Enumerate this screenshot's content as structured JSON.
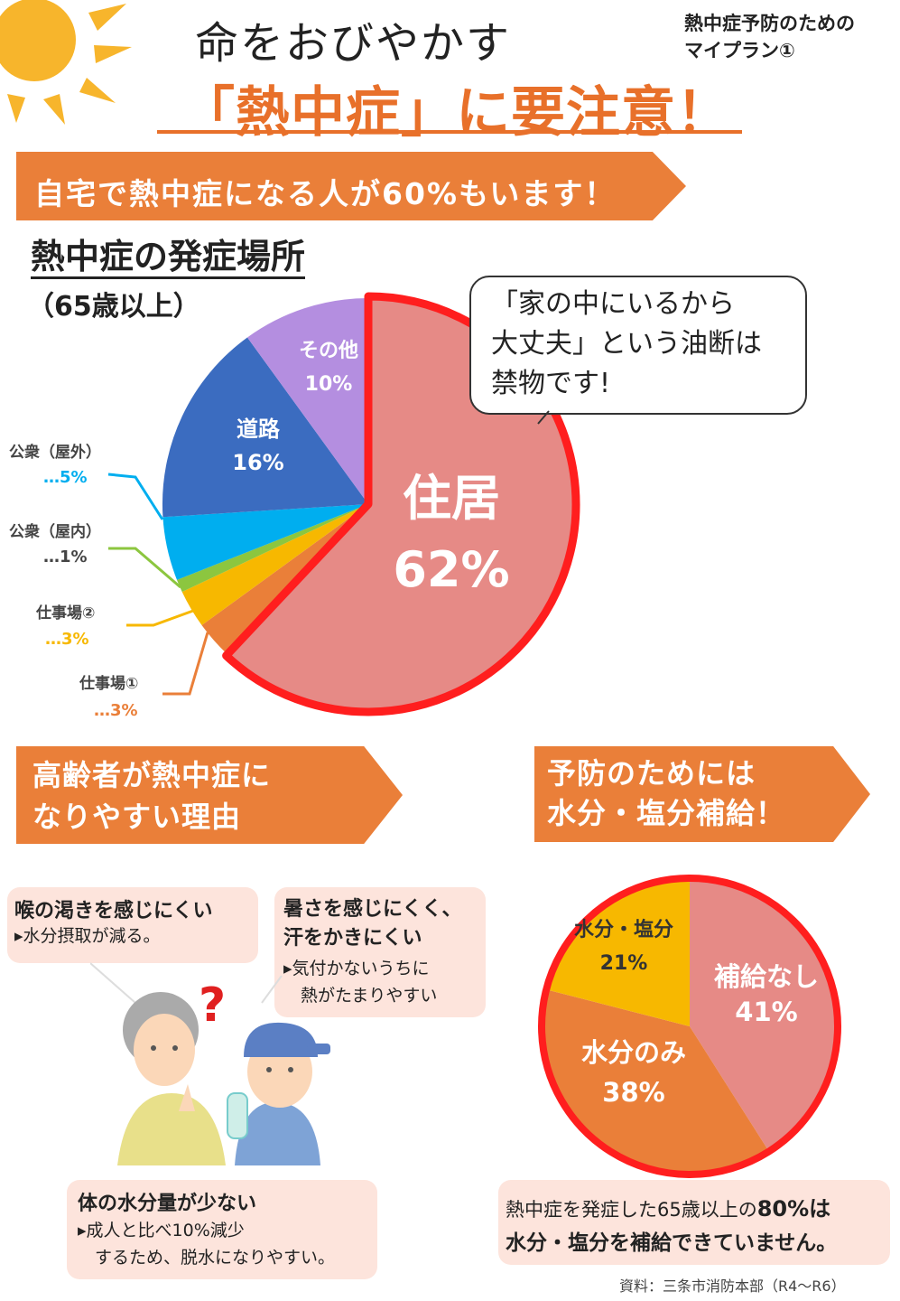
{
  "header": {
    "title_line1": "命をおびやかす",
    "title_line2": "「熱中症」に要注意！",
    "series_label_line1": "熱中症予防のための",
    "series_label_line2": "マイプラン①"
  },
  "banner_home": "自宅で熱中症になる人が60%もいます！",
  "onset_section": {
    "title": "熱中症の発症場所",
    "subtitle": "（65歳以上）",
    "speech_bubble": [
      "「家の中にいるから",
      "大丈夫」という油断は",
      "禁物です!"
    ]
  },
  "chart_data": [
    {
      "type": "pie",
      "title": "熱中症の発症場所",
      "subtitle": "（65歳以上）",
      "slices": [
        {
          "label": "住居",
          "value": 62,
          "color": "#e68a86"
        },
        {
          "label": "仕事場①",
          "value": 3,
          "color": "#ea7f39"
        },
        {
          "label": "仕事場②",
          "value": 3,
          "color": "#f7b800"
        },
        {
          "label": "公衆（屋内）",
          "value": 1,
          "color": "#8cc63f"
        },
        {
          "label": "公衆（屋外）",
          "value": 5,
          "color": "#00aeef"
        },
        {
          "label": "道路",
          "value": 16,
          "color": "#3b6cc0"
        },
        {
          "label": "その他",
          "value": 10,
          "color": "#b48ee0"
        }
      ],
      "value_labels": {
        "home": "62%",
        "road": "16%",
        "other": "10%",
        "public_outdoor": "…5%",
        "public_indoor": "…1%",
        "workplace2": "…3%",
        "workplace1": "…3%"
      }
    },
    {
      "type": "pie",
      "slices": [
        {
          "label": "補給なし",
          "value": 41,
          "color": "#e68a86"
        },
        {
          "label": "水分のみ",
          "value": 38,
          "color": "#ea7f39"
        },
        {
          "label": "水分・塩分",
          "value": 21,
          "color": "#f7b800"
        }
      ],
      "value_labels": {
        "none": "41%",
        "water_only": "38%",
        "water_salt": "21%"
      }
    }
  ],
  "reasons_banner": [
    "高齢者が熱中症に",
    "なりやすい理由"
  ],
  "prevention_banner": [
    "予防のためには",
    "水分・塩分補給！"
  ],
  "reasons": [
    {
      "title": "喉の渇きを感じにくい",
      "body": [
        "▸水分摂取が減る。"
      ]
    },
    {
      "title_lines": [
        "暑さを感じにくく、",
        "汗をかきにくい"
      ],
      "body": [
        "▸気付かないうちに",
        "　熱がたまりやすい"
      ]
    },
    {
      "title": "体の水分量が少ない",
      "body": [
        "▸成人と比べ10%減少",
        "　するため、脱水になりやすい。"
      ]
    }
  ],
  "conclusion": {
    "line1_pre": "熱中症を発症した65歳以上の",
    "line1_bold": "80%は",
    "line2": "水分・塩分を補給できていません。"
  },
  "source": "資料：三条市消防本部（R4～R6）",
  "colors": {
    "accent_orange": "#ea7f39",
    "title_orange": "#e8702a",
    "highlight_red": "#ff1e1e",
    "bubble_pink": "#fde4dc"
  }
}
